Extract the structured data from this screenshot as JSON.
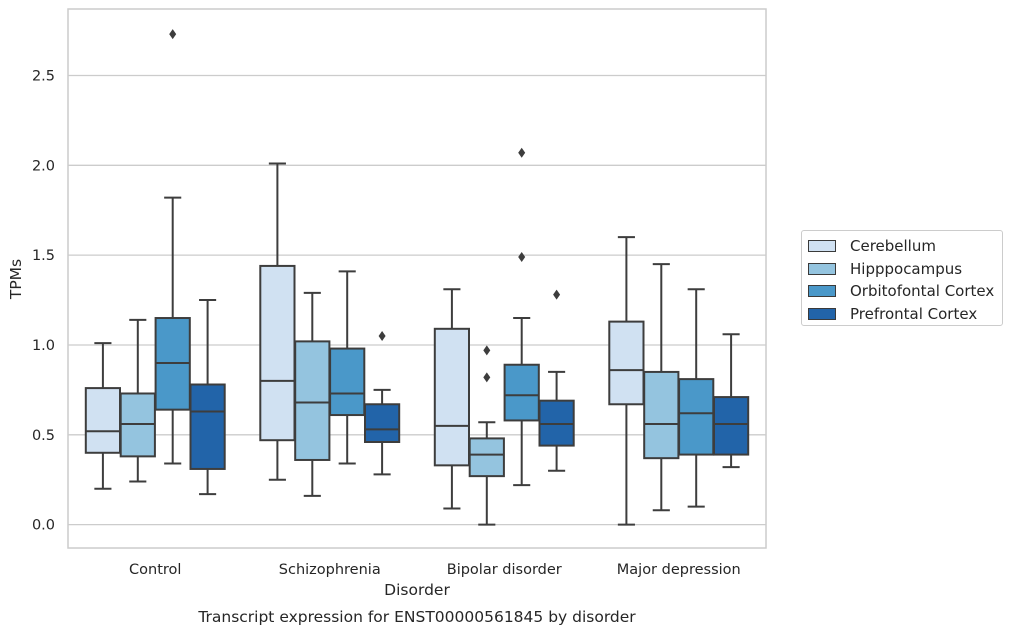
{
  "chart_data": {
    "type": "box",
    "title": "Transcript expression for ENST00000561845 by disorder",
    "xlabel": "Disorder",
    "ylabel": "TPMs",
    "ylim": [
      -0.13,
      2.87
    ],
    "yticks": [
      0.0,
      0.5,
      1.0,
      1.5,
      2.0,
      2.5
    ],
    "ytick_labels": [
      "0.0",
      "0.5",
      "1.0",
      "1.5",
      "2.0",
      "2.5"
    ],
    "grid": "horizontal",
    "legend_position": "right",
    "categories": [
      "Control",
      "Schizophrenia",
      "Bipolar disorder",
      "Major depression"
    ],
    "series": [
      {
        "name": "Cerebellum",
        "color": "#d0e1f2",
        "boxes": [
          {
            "whisker_low": 0.2,
            "q1": 0.4,
            "median": 0.52,
            "q3": 0.76,
            "whisker_high": 1.01,
            "outliers": []
          },
          {
            "whisker_low": 0.25,
            "q1": 0.47,
            "median": 0.8,
            "q3": 1.44,
            "whisker_high": 2.01,
            "outliers": []
          },
          {
            "whisker_low": 0.09,
            "q1": 0.33,
            "median": 0.55,
            "q3": 1.09,
            "whisker_high": 1.31,
            "outliers": []
          },
          {
            "whisker_low": 0.0,
            "q1": 0.67,
            "median": 0.86,
            "q3": 1.13,
            "whisker_high": 1.6,
            "outliers": []
          }
        ]
      },
      {
        "name": "Hipppocampus",
        "color": "#94c4df",
        "boxes": [
          {
            "whisker_low": 0.24,
            "q1": 0.38,
            "median": 0.56,
            "q3": 0.73,
            "whisker_high": 1.14,
            "outliers": []
          },
          {
            "whisker_low": 0.16,
            "q1": 0.36,
            "median": 0.68,
            "q3": 1.02,
            "whisker_high": 1.29,
            "outliers": []
          },
          {
            "whisker_low": 0.0,
            "q1": 0.27,
            "median": 0.39,
            "q3": 0.48,
            "whisker_high": 0.57,
            "outliers": [
              0.82,
              0.97
            ]
          },
          {
            "whisker_low": 0.08,
            "q1": 0.37,
            "median": 0.56,
            "q3": 0.85,
            "whisker_high": 1.45,
            "outliers": []
          }
        ]
      },
      {
        "name": "Orbitofontal Cortex",
        "color": "#4a98c9",
        "boxes": [
          {
            "whisker_low": 0.34,
            "q1": 0.64,
            "median": 0.9,
            "q3": 1.15,
            "whisker_high": 1.82,
            "outliers": [
              2.73
            ]
          },
          {
            "whisker_low": 0.34,
            "q1": 0.61,
            "median": 0.73,
            "q3": 0.98,
            "whisker_high": 1.41,
            "outliers": []
          },
          {
            "whisker_low": 0.22,
            "q1": 0.58,
            "median": 0.72,
            "q3": 0.89,
            "whisker_high": 1.15,
            "outliers": [
              1.49,
              2.07
            ]
          },
          {
            "whisker_low": 0.1,
            "q1": 0.39,
            "median": 0.62,
            "q3": 0.81,
            "whisker_high": 1.31,
            "outliers": []
          }
        ]
      },
      {
        "name": "Prefrontal Cortex",
        "color": "#2264a9",
        "boxes": [
          {
            "whisker_low": 0.17,
            "q1": 0.31,
            "median": 0.63,
            "q3": 0.78,
            "whisker_high": 1.25,
            "outliers": []
          },
          {
            "whisker_low": 0.28,
            "q1": 0.46,
            "median": 0.53,
            "q3": 0.67,
            "whisker_high": 0.75,
            "outliers": [
              1.05
            ]
          },
          {
            "whisker_low": 0.3,
            "q1": 0.44,
            "median": 0.56,
            "q3": 0.69,
            "whisker_high": 0.85,
            "outliers": [
              1.28
            ]
          },
          {
            "whisker_low": 0.32,
            "q1": 0.39,
            "median": 0.56,
            "q3": 0.71,
            "whisker_high": 1.06,
            "outliers": []
          }
        ]
      }
    ]
  }
}
